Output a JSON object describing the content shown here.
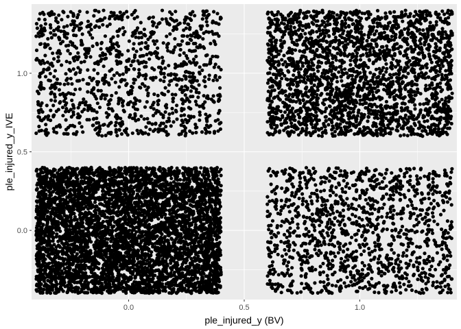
{
  "chart_data": {
    "type": "scatter",
    "title": "",
    "xlabel": "ple_injured_y (BV)",
    "ylabel": "ple_injured_y_IVE",
    "xlim": [
      -0.42,
      1.42
    ],
    "ylim": [
      -0.44,
      1.44
    ],
    "x_ticks": [
      0.0,
      0.5,
      1.0
    ],
    "x_tick_labels": [
      "0.0",
      "0.5",
      "1.0"
    ],
    "y_ticks": [
      0.0,
      0.5,
      1.0
    ],
    "y_tick_labels": [
      "0.0",
      "0.5",
      "1.0"
    ],
    "grid": true,
    "legend": "none",
    "panel_background": "#ebebeb",
    "grid_color": "#ffffff",
    "point_color": "#000000",
    "clusters": [
      {
        "x_range": [
          -0.4,
          0.4
        ],
        "y_range": [
          -0.4,
          0.4
        ],
        "n_points": 5000
      },
      {
        "x_range": [
          0.6,
          1.4
        ],
        "y_range": [
          -0.4,
          0.4
        ],
        "n_points": 1300
      },
      {
        "x_range": [
          -0.4,
          0.4
        ],
        "y_range": [
          0.6,
          1.4
        ],
        "n_points": 1150
      },
      {
        "x_range": [
          0.6,
          1.4
        ],
        "y_range": [
          0.6,
          1.4
        ],
        "n_points": 2500
      }
    ]
  }
}
